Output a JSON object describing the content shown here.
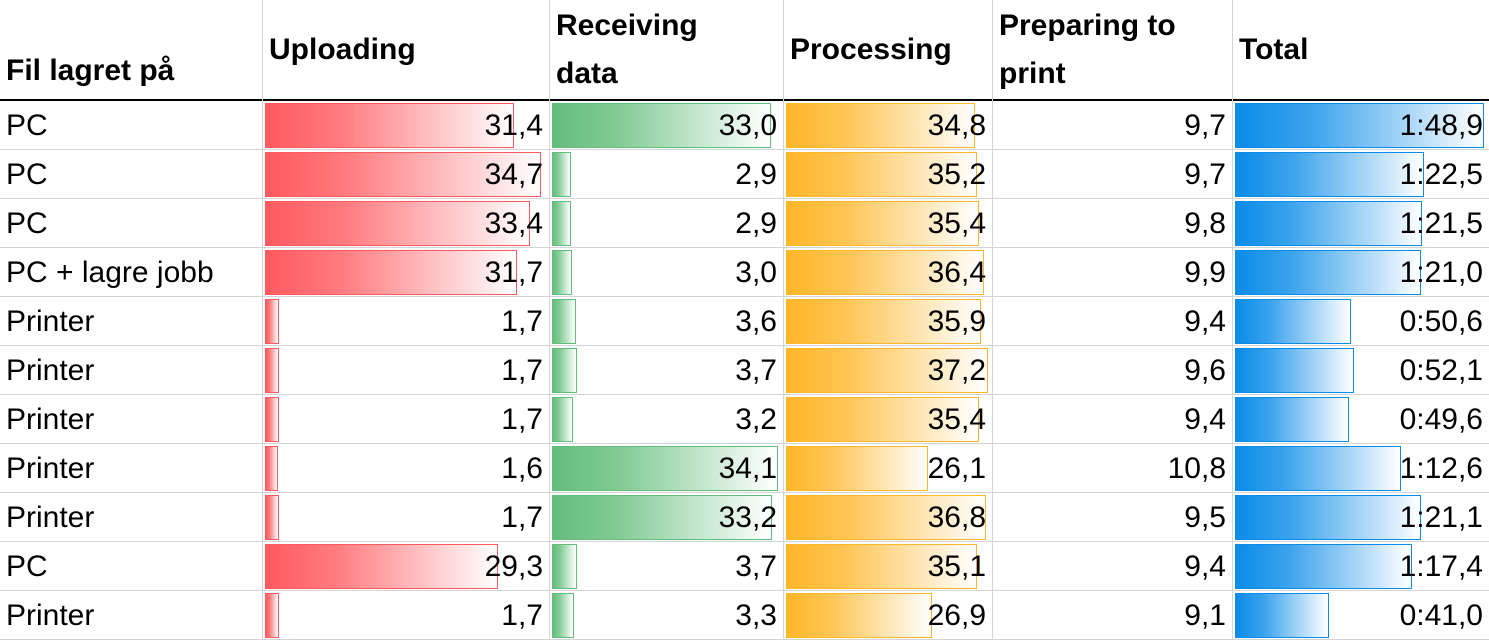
{
  "headers": {
    "location": "Fil lagret på",
    "uploading": "Uploading",
    "receiving": "Receiving\ndata",
    "processing": "Processing",
    "preparing": "Preparing to\nprint",
    "total": "Total"
  },
  "colors": {
    "uploading": "#ff5a5f",
    "receiving": "#63be7b",
    "processing": "#ffb628",
    "total": "#0a8ce8",
    "gridline": "#d4d4d4"
  },
  "chart_data": {
    "type": "table",
    "columns": [
      "Fil lagret på",
      "Uploading",
      "Receiving data",
      "Processing",
      "Preparing to print",
      "Total"
    ],
    "data_bar_scales": {
      "uploading": [
        0,
        35.5
      ],
      "receiving": [
        0,
        34.5
      ],
      "processing": [
        0,
        37.5
      ],
      "total_seconds": [
        0,
        110
      ]
    },
    "rows": [
      {
        "location": "PC",
        "uploading": "31,4",
        "receiving": "33,0",
        "processing": "34,8",
        "preparing": "9,7",
        "total": "1:48,9",
        "u": 31.4,
        "r": 33.0,
        "p": 34.8,
        "t": 108.9
      },
      {
        "location": "PC",
        "uploading": "34,7",
        "receiving": "2,9",
        "processing": "35,2",
        "preparing": "9,7",
        "total": "1:22,5",
        "u": 34.7,
        "r": 2.9,
        "p": 35.2,
        "t": 82.5
      },
      {
        "location": "PC",
        "uploading": "33,4",
        "receiving": "2,9",
        "processing": "35,4",
        "preparing": "9,8",
        "total": "1:21,5",
        "u": 33.4,
        "r": 2.9,
        "p": 35.4,
        "t": 81.5
      },
      {
        "location": "PC + lagre jobb",
        "uploading": "31,7",
        "receiving": "3,0",
        "processing": "36,4",
        "preparing": "9,9",
        "total": "1:21,0",
        "u": 31.7,
        "r": 3.0,
        "p": 36.4,
        "t": 81.0
      },
      {
        "location": "Printer",
        "uploading": "1,7",
        "receiving": "3,6",
        "processing": "35,9",
        "preparing": "9,4",
        "total": "0:50,6",
        "u": 1.7,
        "r": 3.6,
        "p": 35.9,
        "t": 50.6
      },
      {
        "location": "Printer",
        "uploading": "1,7",
        "receiving": "3,7",
        "processing": "37,2",
        "preparing": "9,6",
        "total": "0:52,1",
        "u": 1.7,
        "r": 3.7,
        "p": 37.2,
        "t": 52.1
      },
      {
        "location": "Printer",
        "uploading": "1,7",
        "receiving": "3,2",
        "processing": "35,4",
        "preparing": "9,4",
        "total": "0:49,6",
        "u": 1.7,
        "r": 3.2,
        "p": 35.4,
        "t": 49.6
      },
      {
        "location": "Printer",
        "uploading": "1,6",
        "receiving": "34,1",
        "processing": "26,1",
        "preparing": "10,8",
        "total": "1:12,6",
        "u": 1.6,
        "r": 34.1,
        "p": 26.1,
        "t": 72.6
      },
      {
        "location": "Printer",
        "uploading": "1,7",
        "receiving": "33,2",
        "processing": "36,8",
        "preparing": "9,5",
        "total": "1:21,1",
        "u": 1.7,
        "r": 33.2,
        "p": 36.8,
        "t": 81.1
      },
      {
        "location": "PC",
        "uploading": "29,3",
        "receiving": "3,7",
        "processing": "35,1",
        "preparing": "9,4",
        "total": "1:17,4",
        "u": 29.3,
        "r": 3.7,
        "p": 35.1,
        "t": 77.4
      },
      {
        "location": "Printer",
        "uploading": "1,7",
        "receiving": "3,3",
        "processing": "26,9",
        "preparing": "9,1",
        "total": "0:41,0",
        "u": 1.7,
        "r": 3.3,
        "p": 26.9,
        "t": 41.0
      }
    ]
  }
}
